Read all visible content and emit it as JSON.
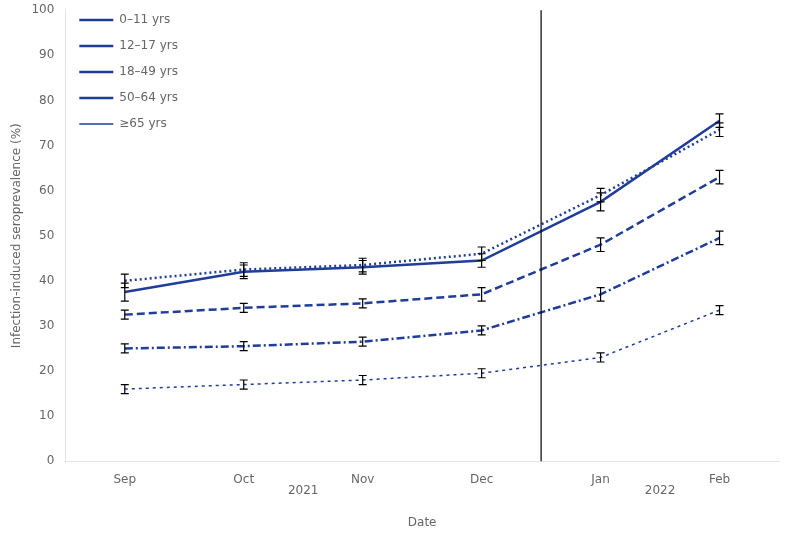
{
  "chart_data": {
    "type": "line",
    "title": "",
    "xlabel": "Date",
    "ylabel": "Infection-induced seroprevalence (%)",
    "categories": [
      "Sep",
      "Oct",
      "Nov",
      "Dec",
      "Jan",
      "Feb"
    ],
    "annotations": [
      {
        "text": "2021",
        "from": "Sep",
        "to": "Dec"
      },
      {
        "text": "2022",
        "from": "Jan",
        "to": "Feb"
      }
    ],
    "color": "#1f3d99",
    "ylim": [
      0,
      100
    ],
    "yticks": [
      0,
      10,
      20,
      30,
      40,
      50,
      60,
      70,
      80,
      90,
      100
    ],
    "grid": false,
    "legend": "upper left",
    "series": [
      {
        "name": "0–11 yrs",
        "line_style": "solid",
        "values": [
          37.5,
          42.0,
          43.0,
          44.5,
          57.5,
          75.5
        ],
        "yerr": [
          2.0,
          1.5,
          1.5,
          1.5,
          2.0,
          1.5
        ]
      },
      {
        "name": "12–17 yrs",
        "line_style": "dotted",
        "values": [
          40.0,
          42.5,
          43.5,
          46.0,
          59.0,
          73.5
        ],
        "yerr": [
          1.5,
          1.5,
          1.5,
          1.5,
          1.5,
          1.5
        ]
      },
      {
        "name": "18–49 yrs",
        "line_style": "dashed",
        "values": [
          32.5,
          34.0,
          35.0,
          37.0,
          48.0,
          63.0
        ],
        "yerr": [
          1.0,
          1.0,
          1.0,
          1.5,
          1.5,
          1.5
        ]
      },
      {
        "name": "50–64 yrs",
        "line_style": "dashdot",
        "values": [
          25.0,
          25.5,
          26.5,
          29.0,
          37.0,
          49.5
        ],
        "yerr": [
          1.0,
          1.0,
          1.0,
          1.0,
          1.5,
          1.5
        ]
      },
      {
        "name": "≥65 yrs",
        "line_style": "shortdash",
        "values": [
          16.0,
          17.0,
          18.0,
          19.5,
          23.0,
          33.5
        ],
        "yerr": [
          1.0,
          1.0,
          1.0,
          1.0,
          1.0,
          1.0
        ]
      }
    ]
  }
}
